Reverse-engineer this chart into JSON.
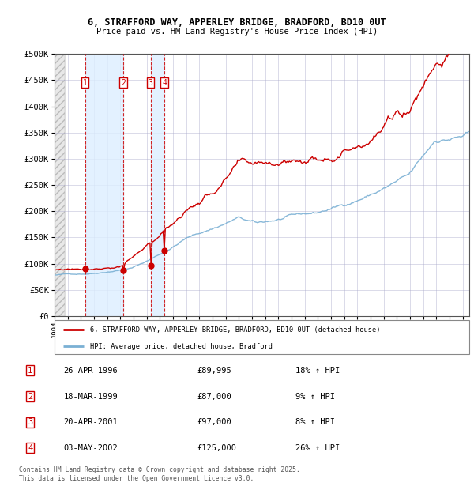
{
  "title_line1": "6, STRAFFORD WAY, APPERLEY BRIDGE, BRADFORD, BD10 0UT",
  "title_line2": "Price paid vs. HM Land Registry's House Price Index (HPI)",
  "xlim_start": 1994.0,
  "xlim_end": 2025.5,
  "ylim": [
    0,
    500000
  ],
  "yticks": [
    0,
    50000,
    100000,
    150000,
    200000,
    250000,
    300000,
    350000,
    400000,
    450000,
    500000
  ],
  "ytick_labels": [
    "£0",
    "£50K",
    "£100K",
    "£150K",
    "£200K",
    "£250K",
    "£300K",
    "£350K",
    "£400K",
    "£450K",
    "£500K"
  ],
  "sale_dates": [
    1996.32,
    1999.21,
    2001.3,
    2002.34
  ],
  "sale_prices": [
    89995,
    87000,
    97000,
    125000
  ],
  "sale_labels": [
    "1",
    "2",
    "3",
    "4"
  ],
  "legend_red": "6, STRAFFORD WAY, APPERLEY BRIDGE, BRADFORD, BD10 0UT (detached house)",
  "legend_blue": "HPI: Average price, detached house, Bradford",
  "table_rows": [
    [
      "1",
      "26-APR-1996",
      "£89,995",
      "18% ↑ HPI"
    ],
    [
      "2",
      "18-MAR-1999",
      "£87,000",
      "9% ↑ HPI"
    ],
    [
      "3",
      "20-APR-2001",
      "£97,000",
      "8% ↑ HPI"
    ],
    [
      "4",
      "03-MAY-2002",
      "£125,000",
      "26% ↑ HPI"
    ]
  ],
  "footer": "Contains HM Land Registry data © Crown copyright and database right 2025.\nThis data is licensed under the Open Government Licence v3.0.",
  "bg_sale_color": "#ddeeff",
  "grid_color": "#aaaacc",
  "red_line_color": "#cc0000",
  "blue_line_color": "#7ab0d4",
  "dashed_color": "#cc0000"
}
